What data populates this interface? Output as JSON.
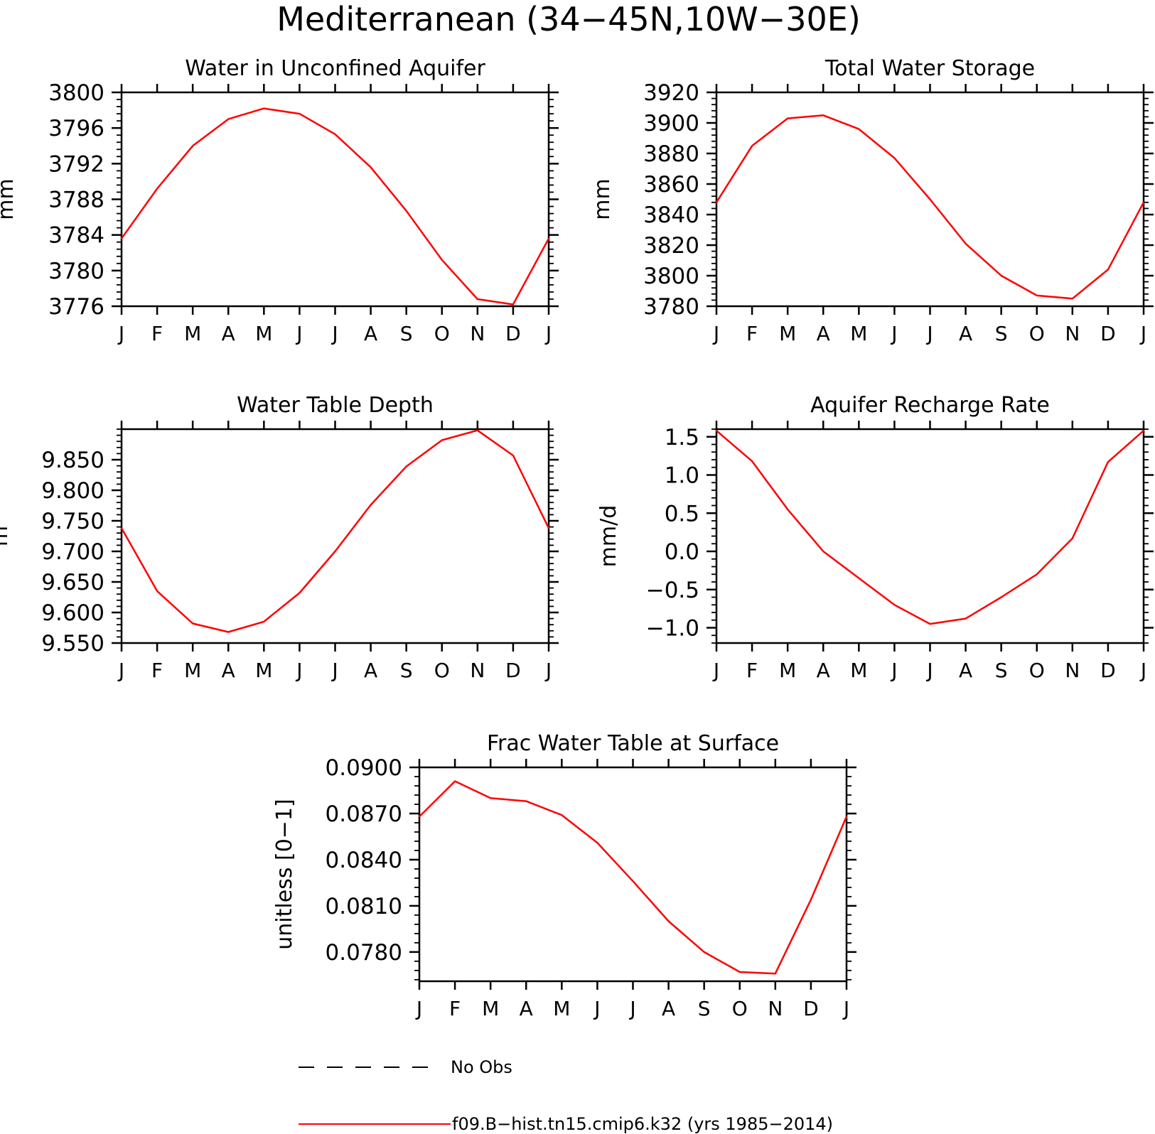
{
  "page_title": "Mediterranean (34−45N,10W−30E)",
  "months": [
    "J",
    "F",
    "M",
    "A",
    "M",
    "J",
    "J",
    "A",
    "S",
    "O",
    "N",
    "D",
    "J"
  ],
  "colors": {
    "model": "#ff0000",
    "axes": "#000000",
    "obs": "#000000"
  },
  "legend": {
    "obs_label": "No Obs",
    "model_label": "f09.B−hist.tn15.cmip6.k32 (yrs 1985−2014)"
  },
  "chart_data": [
    {
      "type": "line",
      "title": "Water in Unconfined Aquifer",
      "ylabel": "mm",
      "ylim": [
        3776,
        3800
      ],
      "yticks": [
        3776,
        3780,
        3784,
        3788,
        3792,
        3796,
        3800
      ],
      "ytick_labels": [
        "3776",
        "3780",
        "3784",
        "3788",
        "3792",
        "3796",
        "3800"
      ],
      "series": [
        {
          "values": [
            3783.6,
            3789.2,
            3794.0,
            3797.0,
            3798.2,
            3797.6,
            3795.3,
            3791.6,
            3786.7,
            3781.2,
            3776.8,
            3776.2,
            3783.6
          ]
        }
      ]
    },
    {
      "type": "line",
      "title": "Total Water Storage",
      "ylabel": "mm",
      "ylim": [
        3780,
        3920
      ],
      "yticks": [
        3780,
        3800,
        3820,
        3840,
        3860,
        3880,
        3900,
        3920
      ],
      "ytick_labels": [
        "3780",
        "3800",
        "3820",
        "3840",
        "3860",
        "3880",
        "3900",
        "3920"
      ],
      "series": [
        {
          "values": [
            3848,
            3885,
            3903,
            3905,
            3896,
            3877,
            3850,
            3821,
            3800,
            3787,
            3785,
            3804,
            3848
          ]
        }
      ]
    },
    {
      "type": "line",
      "title": "Water Table Depth",
      "ylabel": "m",
      "ylim": [
        9.55,
        9.9
      ],
      "yticks": [
        9.55,
        9.6,
        9.65,
        9.7,
        9.75,
        9.8,
        9.85
      ],
      "ytick_labels": [
        "9.550",
        "9.600",
        "9.650",
        "9.700",
        "9.750",
        "9.800",
        "9.850"
      ],
      "series": [
        {
          "values": [
            9.738,
            9.635,
            9.582,
            9.568,
            9.585,
            9.632,
            9.7,
            9.776,
            9.839,
            9.882,
            9.898,
            9.857,
            9.738
          ]
        }
      ]
    },
    {
      "type": "line",
      "title": "Aquifer Recharge Rate",
      "ylabel": "mm/d",
      "ylim": [
        -1.2,
        1.6
      ],
      "yticks": [
        -1.0,
        -0.5,
        0.0,
        0.5,
        1.0,
        1.5
      ],
      "ytick_labels": [
        "−1.0",
        "−0.5",
        "0.0",
        "0.5",
        "1.0",
        "1.5"
      ],
      "series": [
        {
          "values": [
            1.58,
            1.18,
            0.55,
            0.0,
            -0.35,
            -0.7,
            -0.95,
            -0.88,
            -0.6,
            -0.3,
            0.17,
            1.17,
            1.58
          ]
        }
      ]
    },
    {
      "type": "line",
      "title": "Frac Water Table at Surface",
      "ylabel": "unitless [0−1]",
      "ylim": [
        0.0761,
        0.09
      ],
      "yticks": [
        0.078,
        0.081,
        0.084,
        0.087,
        0.09
      ],
      "ytick_labels": [
        "0.0780",
        "0.0810",
        "0.0840",
        "0.0870",
        "0.0900"
      ],
      "series": [
        {
          "values": [
            0.0868,
            0.0891,
            0.088,
            0.0878,
            0.0869,
            0.0851,
            0.0826,
            0.08,
            0.078,
            0.0767,
            0.0766,
            0.0814,
            0.0868
          ]
        }
      ]
    }
  ]
}
